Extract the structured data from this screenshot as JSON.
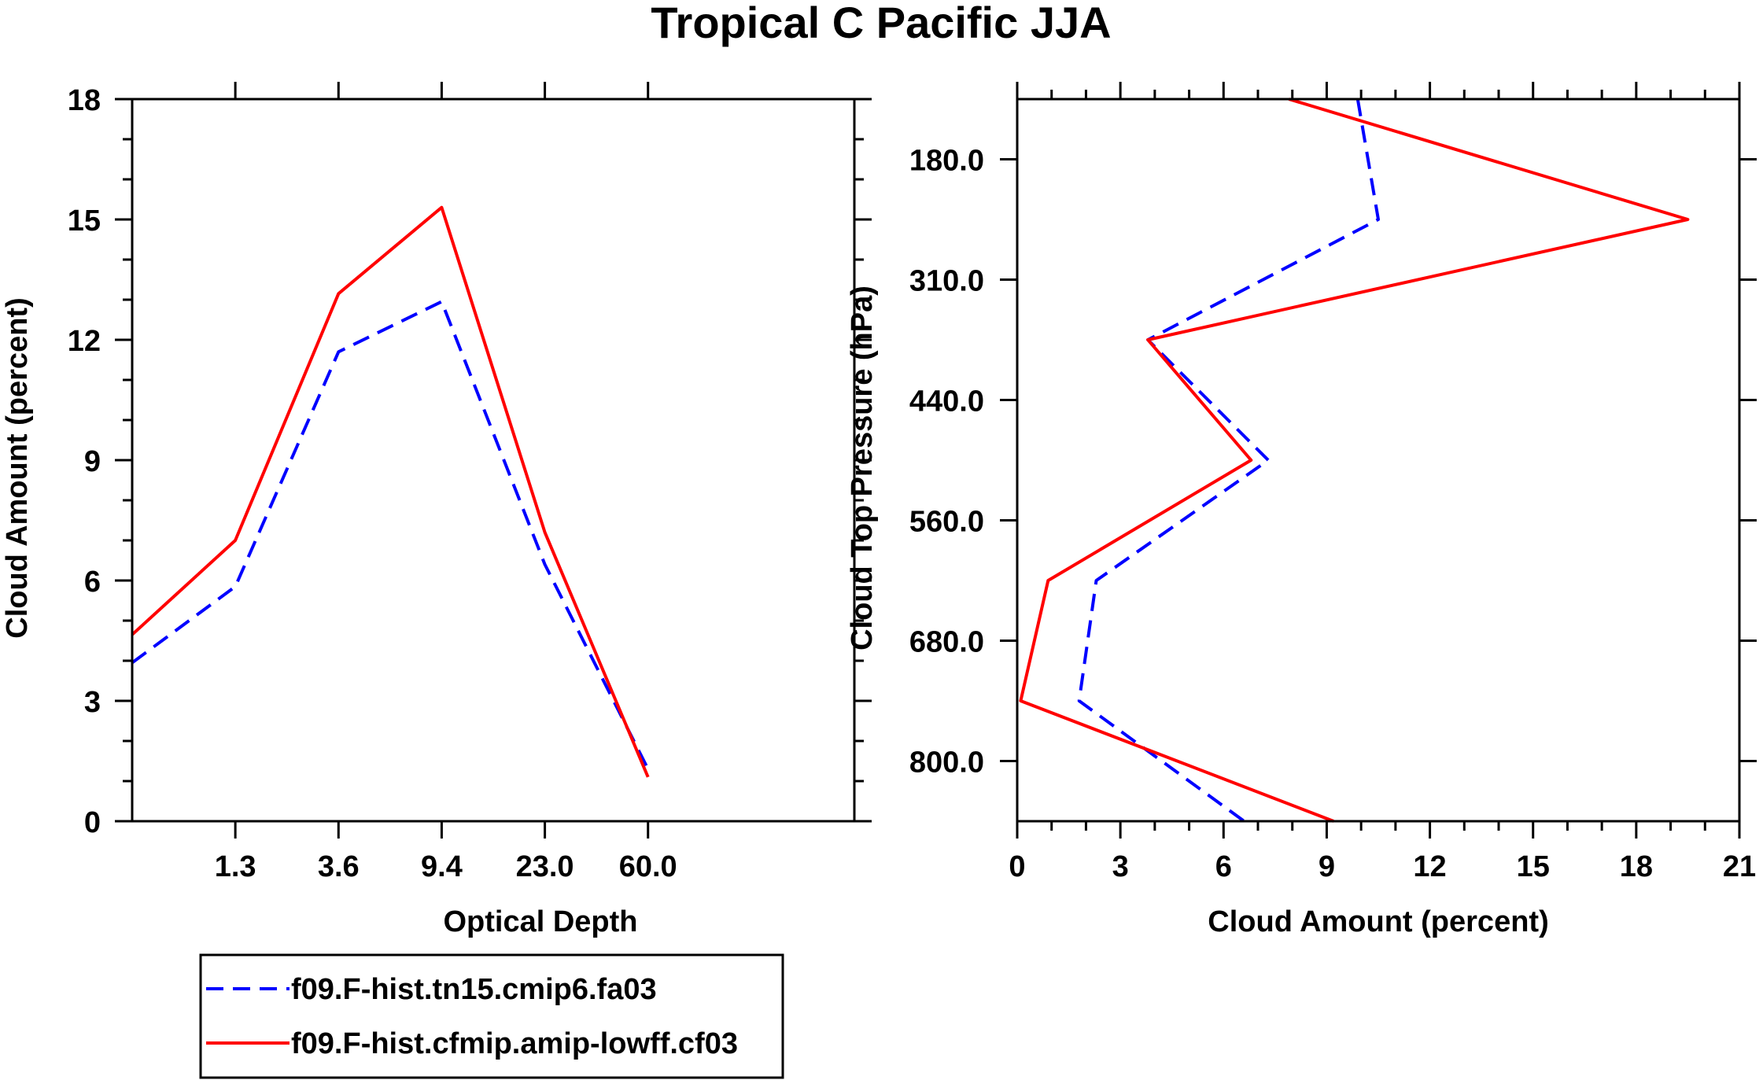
{
  "title": "Tropical C Pacific JJA",
  "colors": {
    "series1": "#0000ff",
    "series2": "#ff0000"
  },
  "legend": {
    "entries": [
      {
        "label": "f09.F-hist.tn15.cmip6.fa03",
        "style": "dashed",
        "color": "#0000ff"
      },
      {
        "label": "f09.F-hist.cfmip.amip-lowff.cf03",
        "style": "solid",
        "color": "#ff0000"
      }
    ]
  },
  "chart_data": [
    {
      "type": "line",
      "xlabel": "Optical Depth",
      "ylabel": "Cloud Amount (percent)",
      "x_tick_labels": [
        "1.3",
        "3.6",
        "9.4",
        "23.0",
        "60.0"
      ],
      "y_ticks": [
        0,
        3,
        6,
        9,
        12,
        15,
        18
      ],
      "ylim": [
        0,
        18
      ],
      "x_bins": [
        0,
        1,
        2,
        3,
        4,
        5,
        6
      ],
      "series": [
        {
          "name": "f09.F-hist.tn15.cmip6.fa03",
          "values": [
            3.95,
            5.85,
            11.7,
            12.95,
            6.4,
            1.3
          ]
        },
        {
          "name": "f09.F-hist.cfmip.amip-lowff.cf03",
          "values": [
            4.65,
            7.0,
            13.15,
            15.3,
            7.2,
            1.1
          ]
        }
      ]
    },
    {
      "type": "line",
      "orientation": "horizontal",
      "xlabel": "Cloud Amount (percent)",
      "ylabel": "Cloud Top Pressure (hPa)",
      "x_ticks": [
        0,
        3,
        6,
        9,
        12,
        15,
        18,
        21
      ],
      "xlim": [
        0,
        21
      ],
      "y_tick_labels": [
        "180.0",
        "310.0",
        "440.0",
        "560.0",
        "680.0",
        "800.0"
      ],
      "y_bins": [
        0,
        1,
        2,
        3,
        4,
        5,
        6
      ],
      "series": [
        {
          "name": "f09.F-hist.tn15.cmip6.fa03",
          "values": [
            9.9,
            10.5,
            3.8,
            7.3,
            2.3,
            1.8,
            6.6
          ]
        },
        {
          "name": "f09.F-hist.cfmip.amip-lowff.cf03",
          "values": [
            7.9,
            19.5,
            3.8,
            6.8,
            0.9,
            0.1,
            9.2
          ]
        }
      ]
    }
  ]
}
